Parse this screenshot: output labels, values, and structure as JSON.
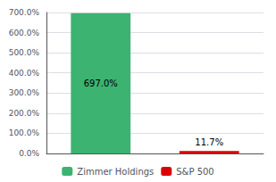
{
  "chart_data": {
    "type": "bar",
    "categories": [
      "Zimmer Holdings",
      "S&P 500"
    ],
    "values": [
      697.0,
      11.7
    ],
    "value_labels": [
      "697.0%",
      "11.7%"
    ],
    "colors": [
      "#3cb371",
      "#dd0000"
    ],
    "data_labels": true,
    "ylim": [
      0,
      700
    ],
    "yticks": [
      {
        "value": 0,
        "label": "0.0%"
      },
      {
        "value": 100,
        "label": "100.0%"
      },
      {
        "value": 200,
        "label": "200.0%"
      },
      {
        "value": 300,
        "label": "300.0%"
      },
      {
        "value": 400,
        "label": "400.0%"
      },
      {
        "value": 500,
        "label": "500.0%"
      },
      {
        "value": 600,
        "label": "600.0%"
      },
      {
        "value": 700,
        "label": "700.0%"
      }
    ],
    "grid": true,
    "legend": "bottom",
    "tick_labels": "y"
  }
}
